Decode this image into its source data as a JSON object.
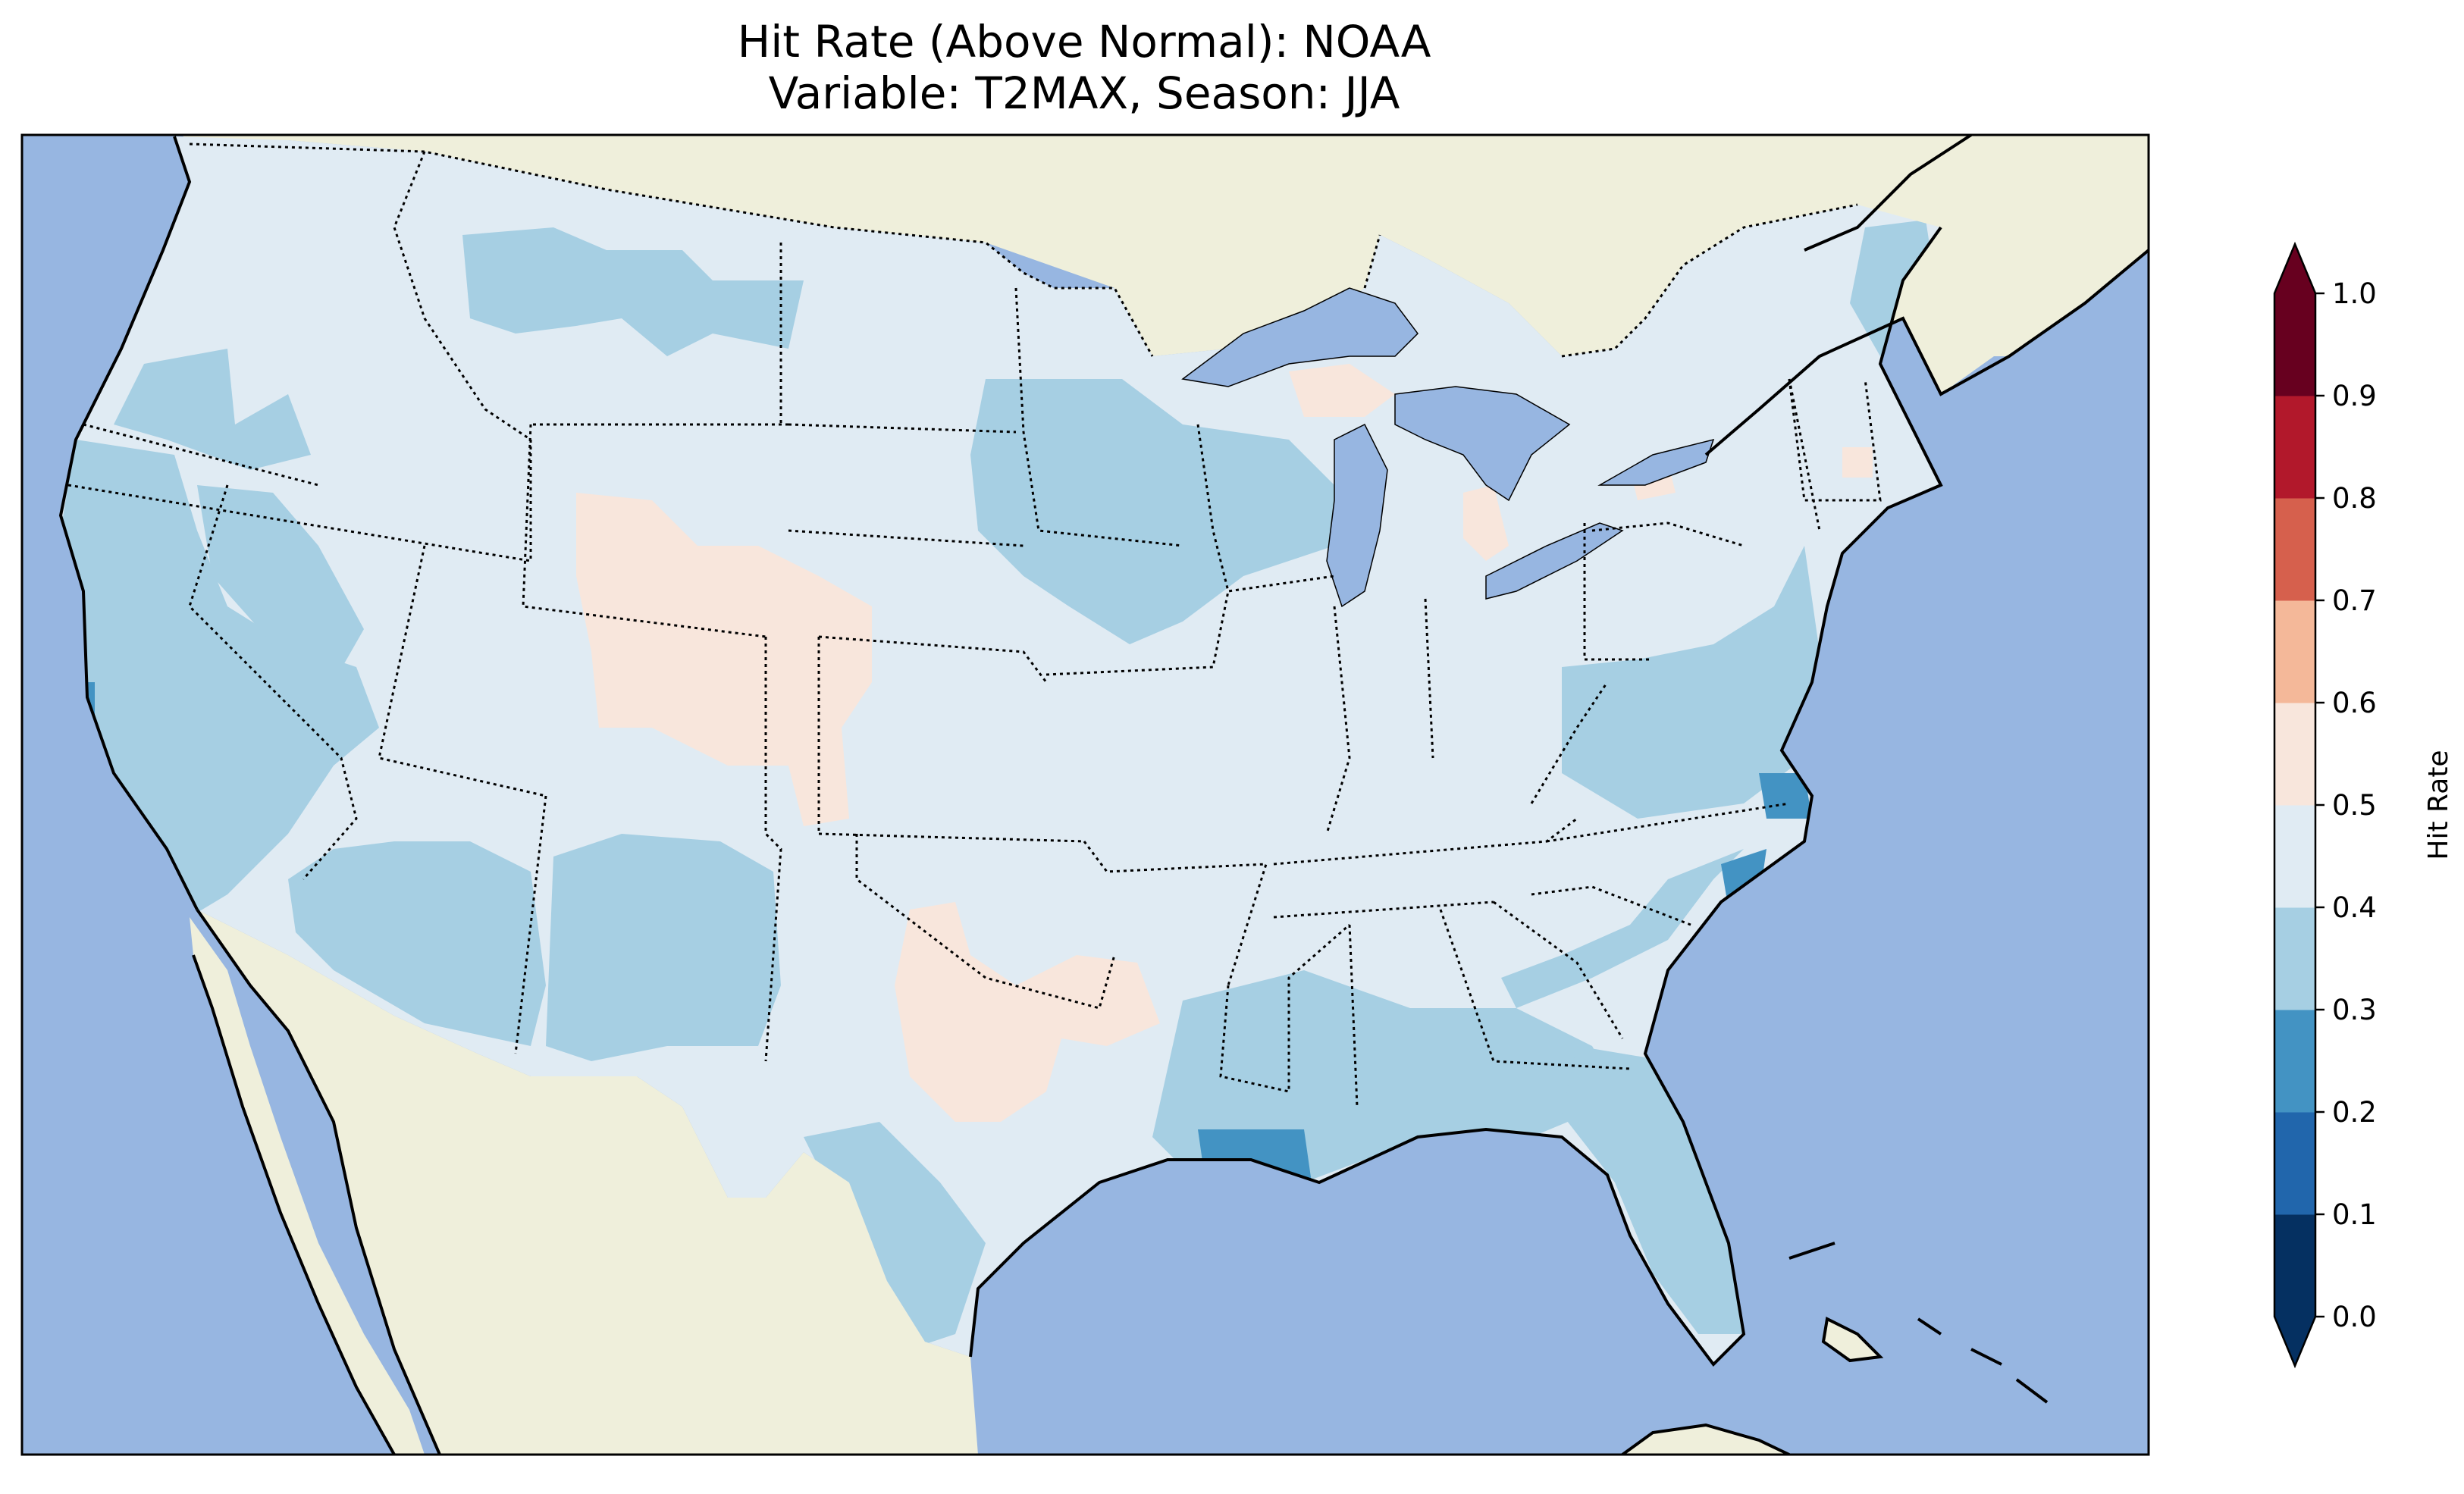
{
  "title": {
    "line1": "Hit Rate (Above Normal): NOAA",
    "line2": "Variable: T2MAX, Season: JJA"
  },
  "colors": {
    "ocean": "#97b6e1",
    "land": "#efefdb",
    "lakes": "#97b6e1"
  },
  "colorbar": {
    "label": "Hit Rate",
    "extend": "both",
    "ticks": [
      "0.0",
      "0.1",
      "0.2",
      "0.3",
      "0.4",
      "0.5",
      "0.6",
      "0.7",
      "0.8",
      "0.9",
      "1.0"
    ],
    "bins": [
      {
        "from": 0.0,
        "to": 0.1,
        "color": "#053061"
      },
      {
        "from": 0.1,
        "to": 0.2,
        "color": "#2166ac"
      },
      {
        "from": 0.2,
        "to": 0.3,
        "color": "#4393c3"
      },
      {
        "from": 0.3,
        "to": 0.4,
        "color": "#a6cfe3"
      },
      {
        "from": 0.4,
        "to": 0.5,
        "color": "#e0ebf3"
      },
      {
        "from": 0.5,
        "to": 0.6,
        "color": "#f8e6dc"
      },
      {
        "from": 0.6,
        "to": 0.7,
        "color": "#f4b899"
      },
      {
        "from": 0.7,
        "to": 0.8,
        "color": "#d6604d"
      },
      {
        "from": 0.8,
        "to": 0.9,
        "color": "#b2182b"
      },
      {
        "from": 0.9,
        "to": 1.0,
        "color": "#67001f"
      }
    ]
  },
  "regions": [
    {
      "name": "conus-base",
      "value": 0.45
    },
    {
      "name": "pacific-northwest",
      "value": 0.35
    },
    {
      "name": "california-coast",
      "value": 0.35
    },
    {
      "name": "nevada",
      "value": 0.35
    },
    {
      "name": "southwest-arizona",
      "value": 0.35
    },
    {
      "name": "new-mexico",
      "value": 0.35
    },
    {
      "name": "montana",
      "value": 0.35
    },
    {
      "name": "upper-midwest",
      "value": 0.35
    },
    {
      "name": "gulf-coast",
      "value": 0.35
    },
    {
      "name": "florida",
      "value": 0.35
    },
    {
      "name": "southeast-coast",
      "value": 0.35
    },
    {
      "name": "mid-atlantic",
      "value": 0.35
    },
    {
      "name": "maine",
      "value": 0.35
    },
    {
      "name": "louisiana-coast",
      "value": 0.25
    },
    {
      "name": "north-carolina-coast",
      "value": 0.25
    },
    {
      "name": "southern-california-pixel",
      "value": 0.25
    },
    {
      "name": "colorado-wyoming",
      "value": 0.55
    },
    {
      "name": "texas-oklahoma",
      "value": 0.55
    },
    {
      "name": "michigan-upper",
      "value": 0.55
    },
    {
      "name": "michigan-lower",
      "value": 0.55
    },
    {
      "name": "new-york-spot",
      "value": 0.55
    },
    {
      "name": "new-hampshire-spot",
      "value": 0.55
    }
  ]
}
